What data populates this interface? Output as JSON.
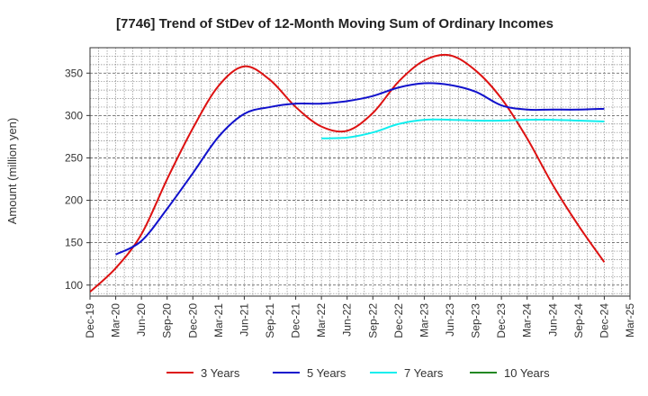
{
  "chart_data": {
    "type": "line",
    "title": "[7746]  Trend of StDev of 12-Month Moving Sum of Ordinary Incomes",
    "xlabel": "",
    "ylabel": "Amount (million yen)",
    "categories": [
      "Dec-19",
      "Mar-20",
      "Jun-20",
      "Sep-20",
      "Dec-20",
      "Mar-21",
      "Jun-21",
      "Sep-21",
      "Dec-21",
      "Mar-22",
      "Jun-22",
      "Sep-22",
      "Dec-22",
      "Mar-23",
      "Jun-23",
      "Sep-23",
      "Dec-23",
      "Mar-24",
      "Jun-24",
      "Sep-24",
      "Dec-24",
      "Mar-25"
    ],
    "ylim": [
      87,
      380
    ],
    "yticks": [
      100,
      150,
      200,
      250,
      300,
      350
    ],
    "grid": true,
    "legend_position": "bottom",
    "series": [
      {
        "name": "3 Years",
        "color": "#dd1111",
        "values": [
          92,
          120,
          160,
          225,
          285,
          335,
          358,
          342,
          310,
          287,
          282,
          303,
          340,
          365,
          371,
          353,
          320,
          273,
          218,
          170,
          127,
          null
        ]
      },
      {
        "name": "5 Years",
        "color": "#1111cc",
        "values": [
          null,
          136,
          152,
          190,
          232,
          275,
          302,
          310,
          314,
          314,
          317,
          323,
          333,
          338,
          336,
          328,
          312,
          307,
          307,
          307,
          308,
          null
        ]
      },
      {
        "name": "7 Years",
        "color": "#11eeee",
        "values": [
          null,
          null,
          null,
          null,
          null,
          null,
          null,
          null,
          null,
          273,
          274,
          280,
          290,
          295,
          295,
          294,
          294,
          295,
          295,
          294,
          293,
          null
        ]
      },
      {
        "name": "10 Years",
        "color": "#228822",
        "values": [
          null,
          null,
          null,
          null,
          null,
          null,
          null,
          null,
          null,
          null,
          null,
          null,
          null,
          null,
          null,
          null,
          null,
          null,
          null,
          null,
          null,
          null
        ]
      }
    ]
  }
}
